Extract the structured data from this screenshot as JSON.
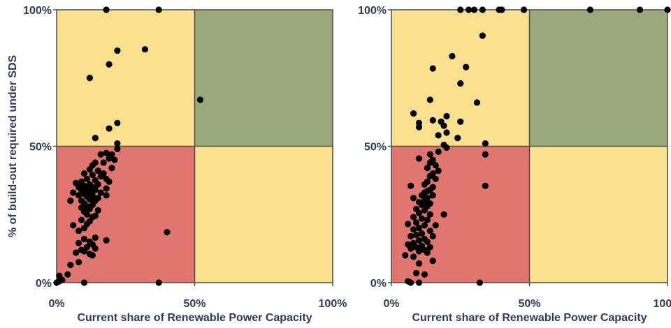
{
  "colors": {
    "red_zone": "#e0766f",
    "yellow_zone": "#fbe08f",
    "green_zone": "#9aa97b",
    "divider": "#4a4a4a",
    "point": "#000000",
    "text": "#2f3b57"
  },
  "chart_data": [
    {
      "type": "scatter",
      "xlabel": "Current share of Renewable Power Capacity",
      "ylabel": "% of build-out required under SDS",
      "xlim": [
        0,
        1
      ],
      "ylim": [
        0,
        1
      ],
      "xticks": [
        {
          "value": 0,
          "label": "0%"
        },
        {
          "value": 0.5,
          "label": "50%"
        },
        {
          "value": 1,
          "label": "100%"
        }
      ],
      "yticks": [
        {
          "value": 0,
          "label": "0%"
        },
        {
          "value": 0.5,
          "label": "50%"
        },
        {
          "value": 1,
          "label": "100%"
        }
      ],
      "grid": false,
      "quadrants": {
        "x_split": 0.5,
        "y_split": 0.5,
        "bottom_left": "red",
        "top_left": "yellow",
        "bottom_right": "yellow",
        "top_right": "green"
      },
      "points": [
        [
          0.18,
          1.0
        ],
        [
          0.37,
          1.0
        ],
        [
          0.22,
          0.85
        ],
        [
          0.32,
          0.855
        ],
        [
          0.19,
          0.8
        ],
        [
          0.12,
          0.75
        ],
        [
          0.52,
          0.67
        ],
        [
          0.22,
          0.585
        ],
        [
          0.19,
          0.565
        ],
        [
          0.14,
          0.53
        ],
        [
          0.22,
          0.51
        ],
        [
          0.22,
          0.49
        ],
        [
          0.2,
          0.47
        ],
        [
          0.18,
          0.475
        ],
        [
          0.16,
          0.47
        ],
        [
          0.19,
          0.455
        ],
        [
          0.21,
          0.45
        ],
        [
          0.17,
          0.44
        ],
        [
          0.14,
          0.44
        ],
        [
          0.13,
          0.43
        ],
        [
          0.2,
          0.42
        ],
        [
          0.15,
          0.41
        ],
        [
          0.12,
          0.415
        ],
        [
          0.17,
          0.4
        ],
        [
          0.1,
          0.4
        ],
        [
          0.13,
          0.395
        ],
        [
          0.16,
          0.39
        ],
        [
          0.18,
          0.38
        ],
        [
          0.11,
          0.38
        ],
        [
          0.14,
          0.375
        ],
        [
          0.09,
          0.37
        ],
        [
          0.19,
          0.37
        ],
        [
          0.07,
          0.365
        ],
        [
          0.12,
          0.36
        ],
        [
          0.15,
          0.36
        ],
        [
          0.1,
          0.355
        ],
        [
          0.08,
          0.35
        ],
        [
          0.13,
          0.35
        ],
        [
          0.18,
          0.345
        ],
        [
          0.11,
          0.345
        ],
        [
          0.09,
          0.34
        ],
        [
          0.14,
          0.34
        ],
        [
          0.06,
          0.33
        ],
        [
          0.12,
          0.335
        ],
        [
          0.16,
          0.33
        ],
        [
          0.1,
          0.325
        ],
        [
          0.08,
          0.32
        ],
        [
          0.13,
          0.32
        ],
        [
          0.11,
          0.315
        ],
        [
          0.15,
          0.31
        ],
        [
          0.05,
          0.3
        ],
        [
          0.09,
          0.3
        ],
        [
          0.12,
          0.305
        ],
        [
          0.18,
          0.32
        ],
        [
          0.14,
          0.3
        ],
        [
          0.1,
          0.29
        ],
        [
          0.13,
          0.285
        ],
        [
          0.11,
          0.28
        ],
        [
          0.09,
          0.275
        ],
        [
          0.12,
          0.27
        ],
        [
          0.15,
          0.265
        ],
        [
          0.1,
          0.26
        ],
        [
          0.11,
          0.25
        ],
        [
          0.14,
          0.245
        ],
        [
          0.13,
          0.24
        ],
        [
          0.09,
          0.23
        ],
        [
          0.12,
          0.225
        ],
        [
          0.11,
          0.215
        ],
        [
          0.06,
          0.21
        ],
        [
          0.1,
          0.2
        ],
        [
          0.08,
          0.19
        ],
        [
          0.4,
          0.185
        ],
        [
          0.14,
          0.165
        ],
        [
          0.1,
          0.16
        ],
        [
          0.18,
          0.155
        ],
        [
          0.12,
          0.15
        ],
        [
          0.08,
          0.145
        ],
        [
          0.13,
          0.14
        ],
        [
          0.11,
          0.13
        ],
        [
          0.14,
          0.125
        ],
        [
          0.09,
          0.12
        ],
        [
          0.1,
          0.115
        ],
        [
          0.07,
          0.11
        ],
        [
          0.12,
          0.105
        ],
        [
          0.13,
          0.1
        ],
        [
          0.08,
          0.075
        ],
        [
          0.05,
          0.065
        ],
        [
          0.04,
          0.03
        ],
        [
          0.01,
          0.025
        ],
        [
          0.02,
          0.01
        ],
        [
          0.0,
          0.0
        ],
        [
          0.01,
          0.005
        ],
        [
          0.1,
          0.0
        ],
        [
          0.37,
          0.0
        ]
      ]
    },
    {
      "type": "scatter",
      "xlabel": "Current share of Renewable Power Capacity",
      "ylabel": "",
      "xlim": [
        0,
        1
      ],
      "ylim": [
        0,
        1
      ],
      "xticks": [
        {
          "value": 0,
          "label": "0%"
        },
        {
          "value": 0.5,
          "label": "50%"
        },
        {
          "value": 1,
          "label": "100%"
        }
      ],
      "yticks": [
        {
          "value": 0,
          "label": "0%"
        },
        {
          "value": 0.5,
          "label": "50%"
        },
        {
          "value": 1,
          "label": "100%"
        }
      ],
      "grid": false,
      "quadrants": {
        "x_split": 0.5,
        "y_split": 0.5,
        "bottom_left": "red",
        "top_left": "yellow",
        "bottom_right": "yellow",
        "top_right": "green"
      },
      "points": [
        [
          0.25,
          1.0
        ],
        [
          0.28,
          1.0
        ],
        [
          0.3,
          1.0
        ],
        [
          0.33,
          1.0
        ],
        [
          0.39,
          1.0
        ],
        [
          0.4,
          1.0
        ],
        [
          0.48,
          1.0
        ],
        [
          0.72,
          1.0
        ],
        [
          0.9,
          1.0
        ],
        [
          1.0,
          1.0
        ],
        [
          0.33,
          0.905
        ],
        [
          0.22,
          0.83
        ],
        [
          0.27,
          0.79
        ],
        [
          0.15,
          0.785
        ],
        [
          0.25,
          0.73
        ],
        [
          0.14,
          0.67
        ],
        [
          0.31,
          0.66
        ],
        [
          0.08,
          0.62
        ],
        [
          0.2,
          0.61
        ],
        [
          0.15,
          0.595
        ],
        [
          0.18,
          0.59
        ],
        [
          0.25,
          0.59
        ],
        [
          0.1,
          0.585
        ],
        [
          0.19,
          0.575
        ],
        [
          0.1,
          0.57
        ],
        [
          0.2,
          0.55
        ],
        [
          0.17,
          0.54
        ],
        [
          0.24,
          0.53
        ],
        [
          0.19,
          0.505
        ],
        [
          0.34,
          0.51
        ],
        [
          0.2,
          0.495
        ],
        [
          0.17,
          0.48
        ],
        [
          0.34,
          0.47
        ],
        [
          0.14,
          0.47
        ],
        [
          0.1,
          0.455
        ],
        [
          0.15,
          0.45
        ],
        [
          0.14,
          0.44
        ],
        [
          0.16,
          0.43
        ],
        [
          0.13,
          0.42
        ],
        [
          0.17,
          0.41
        ],
        [
          0.15,
          0.4
        ],
        [
          0.14,
          0.39
        ],
        [
          0.16,
          0.38
        ],
        [
          0.13,
          0.37
        ],
        [
          0.12,
          0.36
        ],
        [
          0.34,
          0.355
        ],
        [
          0.07,
          0.355
        ],
        [
          0.15,
          0.35
        ],
        [
          0.14,
          0.34
        ],
        [
          0.13,
          0.335
        ],
        [
          0.12,
          0.33
        ],
        [
          0.11,
          0.32
        ],
        [
          0.15,
          0.32
        ],
        [
          0.08,
          0.31
        ],
        [
          0.13,
          0.31
        ],
        [
          0.12,
          0.3
        ],
        [
          0.1,
          0.295
        ],
        [
          0.14,
          0.29
        ],
        [
          0.11,
          0.285
        ],
        [
          0.13,
          0.28
        ],
        [
          0.09,
          0.27
        ],
        [
          0.12,
          0.265
        ],
        [
          0.1,
          0.255
        ],
        [
          0.14,
          0.25
        ],
        [
          0.19,
          0.25
        ],
        [
          0.08,
          0.24
        ],
        [
          0.11,
          0.235
        ],
        [
          0.13,
          0.23
        ],
        [
          0.09,
          0.22
        ],
        [
          0.06,
          0.215
        ],
        [
          0.16,
          0.21
        ],
        [
          0.12,
          0.21
        ],
        [
          0.1,
          0.2
        ],
        [
          0.08,
          0.195
        ],
        [
          0.14,
          0.19
        ],
        [
          0.11,
          0.18
        ],
        [
          0.09,
          0.175
        ],
        [
          0.07,
          0.17
        ],
        [
          0.15,
          0.17
        ],
        [
          0.12,
          0.16
        ],
        [
          0.1,
          0.155
        ],
        [
          0.13,
          0.15
        ],
        [
          0.08,
          0.145
        ],
        [
          0.06,
          0.14
        ],
        [
          0.11,
          0.135
        ],
        [
          0.09,
          0.13
        ],
        [
          0.14,
          0.13
        ],
        [
          0.07,
          0.125
        ],
        [
          0.12,
          0.12
        ],
        [
          0.1,
          0.115
        ],
        [
          0.13,
          0.11
        ],
        [
          0.05,
          0.1
        ],
        [
          0.08,
          0.095
        ],
        [
          0.15,
          0.08
        ],
        [
          0.1,
          0.07
        ],
        [
          0.09,
          0.035
        ],
        [
          0.12,
          0.03
        ],
        [
          0.06,
          0.005
        ],
        [
          0.07,
          0.0
        ],
        [
          0.1,
          0.0
        ],
        [
          0.32,
          0.0
        ]
      ]
    }
  ]
}
